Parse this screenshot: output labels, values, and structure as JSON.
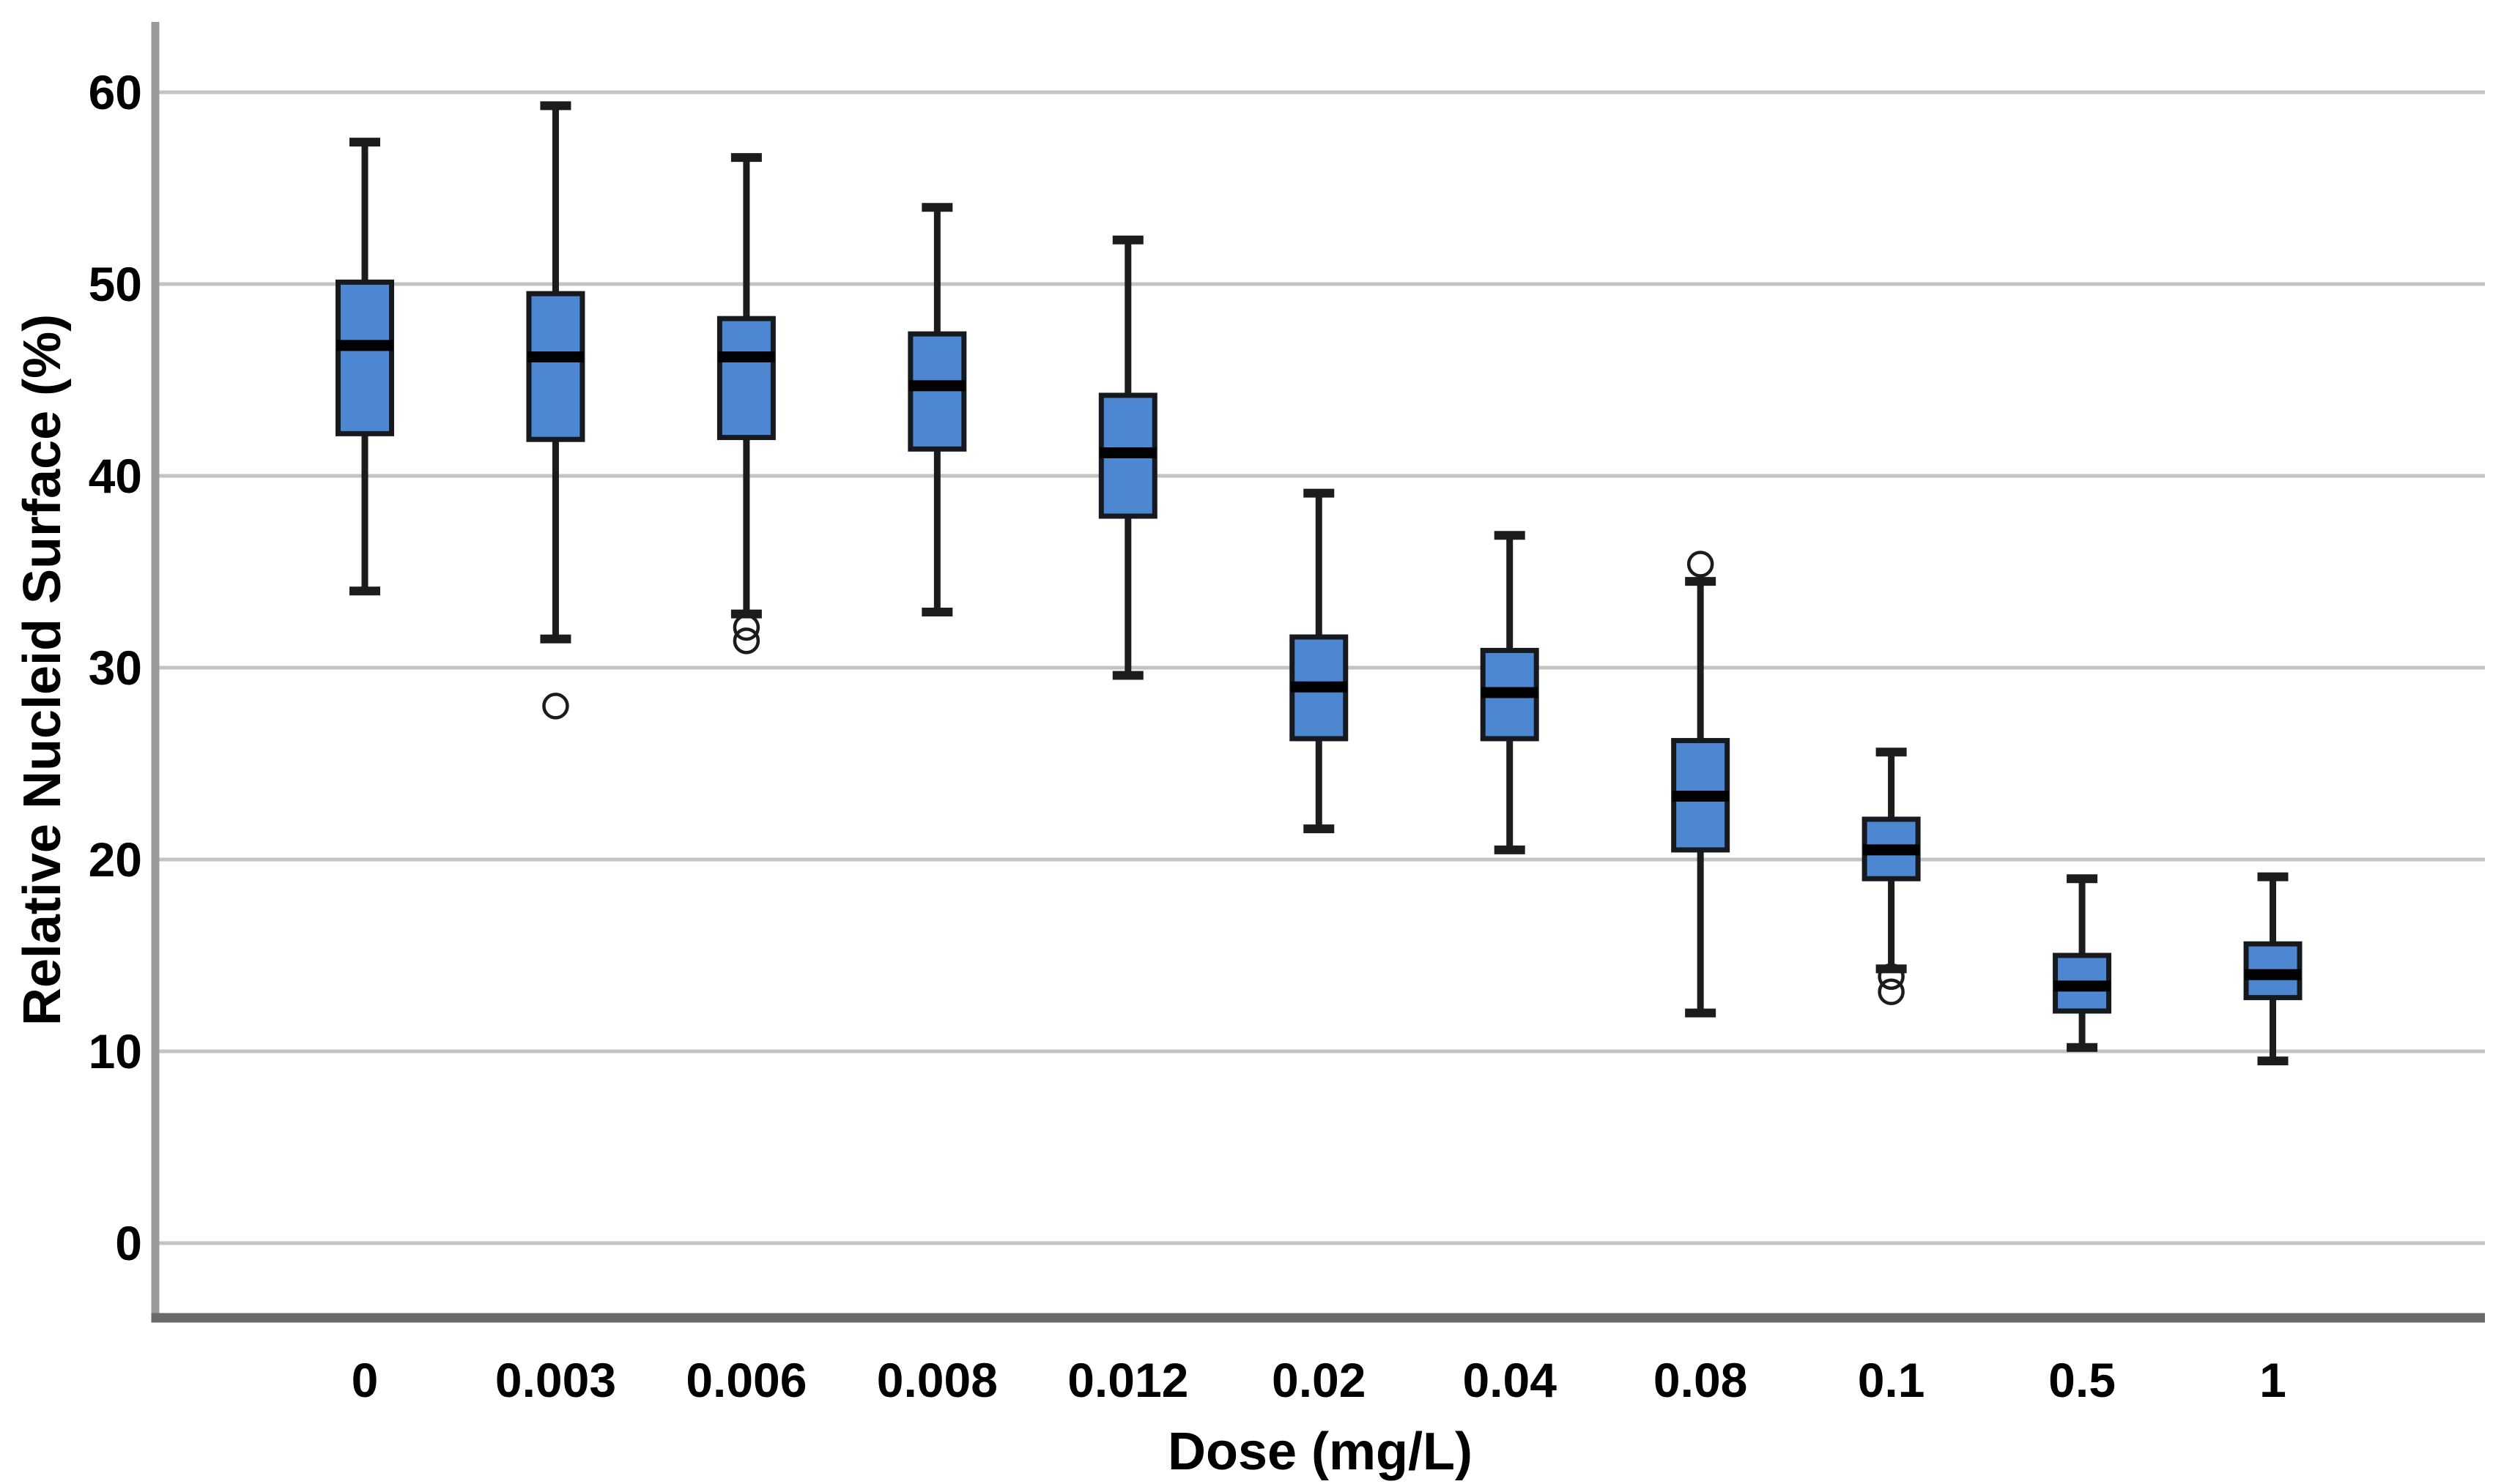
{
  "chart_data": {
    "type": "box",
    "xlabel": "Dose (mg/L)",
    "ylabel": "Relative Nucleid Surface (%)",
    "categories": [
      "0",
      "0.003",
      "0.006",
      "0.008",
      "0.012",
      "0.02",
      "0.04",
      "0.08",
      "0.1",
      "0.5",
      "1"
    ],
    "yticks": [
      0,
      10,
      20,
      30,
      40,
      50,
      60
    ],
    "ylim": [
      -4,
      63.5
    ],
    "grid": "horizontal-gridlines-on",
    "legend": "none",
    "series": [
      {
        "category": "0",
        "min": 34.0,
        "q1": 42.2,
        "median": 46.8,
        "q3": 50.1,
        "max": 57.4,
        "outliers": []
      },
      {
        "category": "0.003",
        "min": 31.5,
        "q1": 41.9,
        "median": 46.2,
        "q3": 49.5,
        "max": 59.3,
        "outliers": [
          28.0
        ]
      },
      {
        "category": "0.006",
        "min": 32.8,
        "q1": 42.0,
        "median": 46.2,
        "q3": 48.2,
        "max": 56.6,
        "outliers": [
          32.1,
          31.4
        ]
      },
      {
        "category": "0.008",
        "min": 32.9,
        "q1": 41.4,
        "median": 44.7,
        "q3": 47.4,
        "max": 54.0,
        "outliers": []
      },
      {
        "category": "0.012",
        "min": 29.6,
        "q1": 37.9,
        "median": 41.2,
        "q3": 44.2,
        "max": 52.3,
        "outliers": []
      },
      {
        "category": "0.02",
        "min": 21.6,
        "q1": 26.3,
        "median": 29.0,
        "q3": 31.6,
        "max": 39.1,
        "outliers": []
      },
      {
        "category": "0.04",
        "min": 20.5,
        "q1": 26.3,
        "median": 28.7,
        "q3": 30.9,
        "max": 36.9,
        "outliers": []
      },
      {
        "category": "0.08",
        "min": 12.0,
        "q1": 20.5,
        "median": 23.3,
        "q3": 26.2,
        "max": 34.5,
        "outliers": [
          35.4
        ]
      },
      {
        "category": "0.1",
        "min": 14.3,
        "q1": 19.0,
        "median": 20.5,
        "q3": 22.1,
        "max": 25.6,
        "outliers": [
          13.9,
          13.1
        ]
      },
      {
        "category": "0.5",
        "min": 10.2,
        "q1": 12.1,
        "median": 13.4,
        "q3": 15.0,
        "max": 19.0,
        "outliers": []
      },
      {
        "category": "1",
        "min": 9.5,
        "q1": 12.8,
        "median": 14.0,
        "q3": 15.6,
        "max": 19.1,
        "outliers": []
      }
    ],
    "colors": {
      "box_fill": "#4d87d1",
      "box_border": "#16191d",
      "median_line": "#000000",
      "whisker": "#1c1c1c",
      "outlier_stroke": "#1c1c1c",
      "gridline": "#c3c3c3",
      "y_axis_line": "#9a9a9a",
      "x_axis_line": "#6a6a6a",
      "text": "#000000"
    }
  }
}
